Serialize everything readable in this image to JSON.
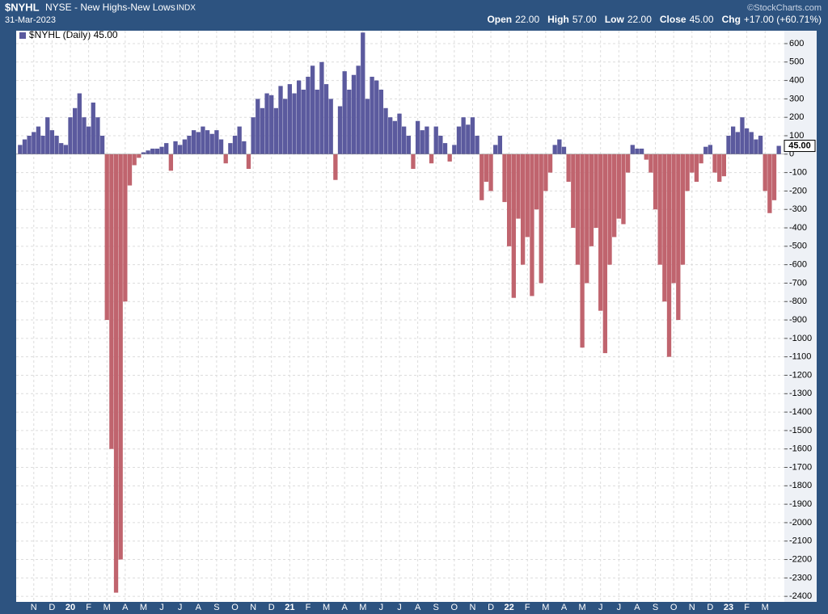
{
  "header": {
    "symbol": "$NYHL",
    "name": "NYSE - New Highs-New Lows",
    "exchange": "INDX",
    "date": "31-Mar-2023",
    "stats": [
      {
        "label": "Open",
        "value": "22.00"
      },
      {
        "label": "High",
        "value": "57.00"
      },
      {
        "label": "Low",
        "value": "22.00"
      },
      {
        "label": "Close",
        "value": "45.00"
      },
      {
        "label": "Chg",
        "value": "+17.00 (+60.71%)"
      }
    ],
    "watermark": "©StockCharts.com"
  },
  "chart_data": {
    "type": "bar",
    "legend": "$NYHL (Daily) 45.00",
    "last_value_label": "45.00",
    "up_color": "#5b5a9e",
    "down_color": "#c0646e",
    "grid": true,
    "ylim": [
      -2430,
      670
    ],
    "yticks": [
      -2400,
      -2300,
      -2200,
      -2100,
      -2000,
      -1900,
      -1800,
      -1700,
      -1600,
      -1500,
      -1400,
      -1300,
      -1200,
      -1100,
      -1000,
      -900,
      -800,
      -700,
      -600,
      -500,
      -400,
      -300,
      -200,
      -100,
      0,
      100,
      200,
      300,
      400,
      500,
      600
    ],
    "categories": [
      null,
      null,
      null,
      "N",
      null,
      null,
      null,
      "D",
      null,
      null,
      null,
      "20",
      null,
      null,
      null,
      "F",
      null,
      null,
      null,
      "M",
      null,
      null,
      null,
      "A",
      null,
      null,
      null,
      "M",
      null,
      null,
      null,
      "J",
      null,
      null,
      null,
      "J",
      null,
      null,
      null,
      "A",
      null,
      null,
      null,
      "S",
      null,
      null,
      null,
      "O",
      null,
      null,
      null,
      "N",
      null,
      null,
      null,
      "D",
      null,
      null,
      null,
      "21",
      null,
      null,
      null,
      "F",
      null,
      null,
      null,
      "M",
      null,
      null,
      null,
      "A",
      null,
      null,
      null,
      "M",
      null,
      null,
      null,
      "J",
      null,
      null,
      null,
      "J",
      null,
      null,
      null,
      "A",
      null,
      null,
      null,
      "S",
      null,
      null,
      null,
      "O",
      null,
      null,
      null,
      "N",
      null,
      null,
      null,
      "D",
      null,
      null,
      null,
      "22",
      null,
      null,
      null,
      "F",
      null,
      null,
      null,
      "M",
      null,
      null,
      null,
      "A",
      null,
      null,
      null,
      "M",
      null,
      null,
      null,
      "J",
      null,
      null,
      null,
      "J",
      null,
      null,
      null,
      "A",
      null,
      null,
      null,
      "S",
      null,
      null,
      null,
      "O",
      null,
      null,
      null,
      "N",
      null,
      null,
      null,
      "D",
      null,
      null,
      null,
      "23",
      null,
      null,
      null,
      "F",
      null,
      null,
      null,
      "M",
      null,
      null,
      null
    ],
    "values": [
      50,
      80,
      100,
      120,
      150,
      100,
      200,
      130,
      100,
      60,
      50,
      200,
      250,
      330,
      200,
      150,
      280,
      200,
      100,
      -900,
      -1600,
      -2380,
      -2200,
      -800,
      -170,
      -60,
      -20,
      10,
      20,
      30,
      30,
      40,
      60,
      -90,
      70,
      50,
      80,
      100,
      130,
      120,
      150,
      130,
      110,
      130,
      80,
      -50,
      60,
      100,
      150,
      70,
      -80,
      200,
      300,
      250,
      330,
      320,
      250,
      370,
      300,
      380,
      330,
      400,
      350,
      420,
      480,
      350,
      500,
      380,
      300,
      -140,
      260,
      450,
      350,
      430,
      480,
      660,
      300,
      420,
      400,
      350,
      250,
      200,
      180,
      220,
      150,
      100,
      -80,
      180,
      130,
      150,
      -50,
      150,
      100,
      60,
      -40,
      50,
      150,
      200,
      160,
      200,
      100,
      -250,
      -150,
      -200,
      50,
      100,
      -260,
      -500,
      -780,
      -350,
      -600,
      -450,
      -770,
      -300,
      -700,
      -200,
      -100,
      50,
      80,
      40,
      -150,
      -400,
      -600,
      -1050,
      -700,
      -500,
      -400,
      -850,
      -1080,
      -600,
      -450,
      -350,
      -380,
      -100,
      50,
      30,
      30,
      -30,
      -100,
      -300,
      -600,
      -800,
      -1100,
      -700,
      -900,
      -600,
      -200,
      -100,
      -150,
      -50,
      40,
      50,
      -100,
      -150,
      -120,
      100,
      150,
      120,
      200,
      140,
      120,
      80,
      100,
      -200,
      -320,
      -250,
      45
    ]
  }
}
